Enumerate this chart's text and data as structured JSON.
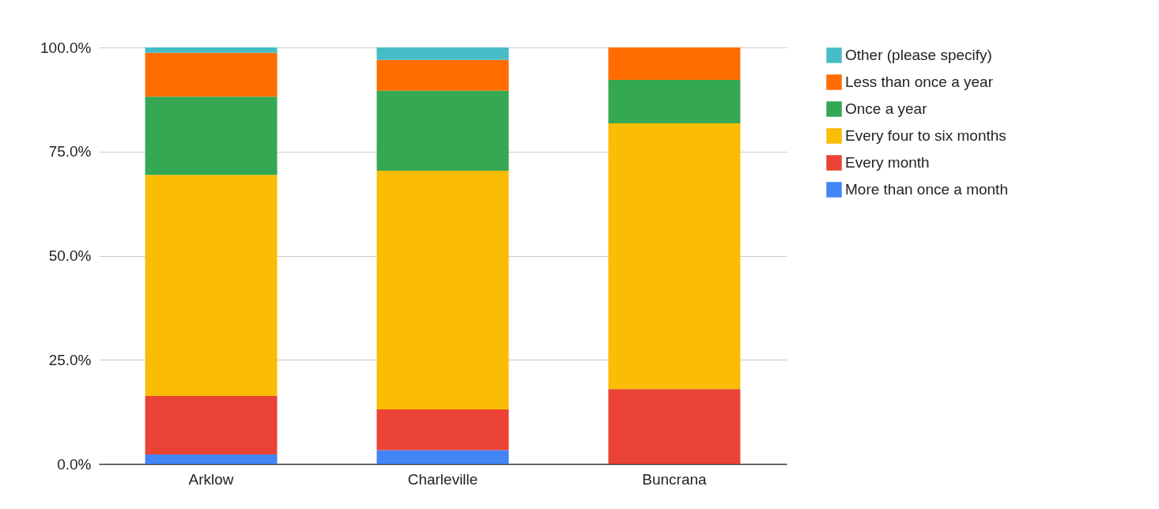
{
  "chart_data": {
    "type": "bar",
    "stacked": true,
    "categories": [
      "Arklow",
      "Charleville",
      "Buncrana"
    ],
    "series": [
      {
        "name": "More than once a month",
        "color": "#4285f4",
        "values": [
          2.3,
          3.3,
          0
        ]
      },
      {
        "name": "Every month",
        "color": "#ea4335",
        "values": [
          14.0,
          9.8,
          18.0
        ]
      },
      {
        "name": "Every four to six months",
        "color": "#fbbc04",
        "values": [
          53.1,
          57.3,
          63.8
        ]
      },
      {
        "name": "Once a year",
        "color": "#34a853",
        "values": [
          18.8,
          19.2,
          10.4
        ]
      },
      {
        "name": "Less than once a year",
        "color": "#ff6d01",
        "values": [
          10.5,
          7.4,
          7.8
        ]
      },
      {
        "name": "Other (please specify)",
        "color": "#46bdc6",
        "values": [
          1.3,
          3.0,
          0
        ]
      }
    ],
    "ylim": [
      0,
      100
    ],
    "yticks": [
      {
        "value": 0,
        "label": "0.0%"
      },
      {
        "value": 25,
        "label": "25.0%"
      },
      {
        "value": 50,
        "label": "50.0%"
      },
      {
        "value": 75,
        "label": "75.0%"
      },
      {
        "value": 100,
        "label": "100.0%"
      }
    ],
    "grid": "y",
    "legend": "right"
  }
}
